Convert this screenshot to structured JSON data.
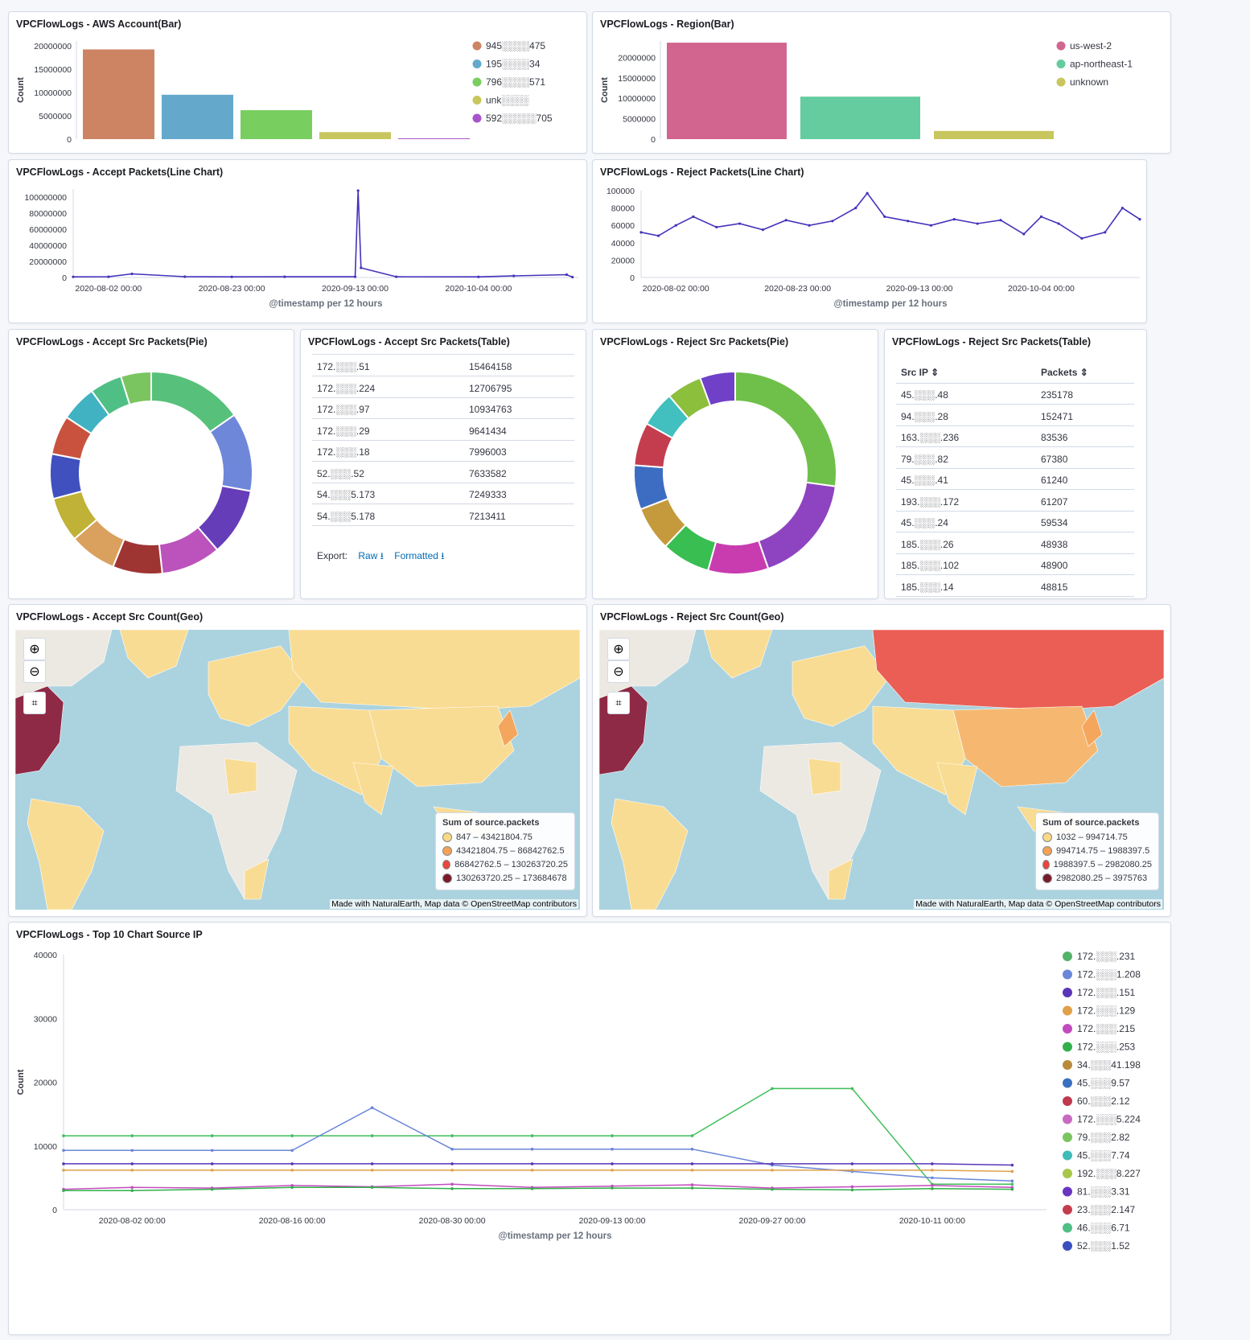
{
  "panels": {
    "aws_account_bar": {
      "title": "VPCFlowLogs - AWS Account(Bar)",
      "ylabel": "Count",
      "yticks": [
        "0",
        "5000000",
        "10000000",
        "15000000",
        "20000000"
      ],
      "legend": [
        "945░░░░475",
        "195░░░░34",
        "796░░░░571",
        "unk░░░░",
        "592░░░░░705"
      ]
    },
    "region_bar": {
      "title": "VPCFlowLogs - Region(Bar)",
      "ylabel": "Count",
      "yticks": [
        "0",
        "5000000",
        "10000000",
        "15000000",
        "20000000"
      ],
      "legend": [
        "us-west-2",
        "ap-northeast-1",
        "unknown"
      ]
    },
    "accept_line": {
      "title": "VPCFlowLogs - Accept Packets(Line Chart)",
      "yticks": [
        "0",
        "20000000",
        "40000000",
        "60000000",
        "80000000",
        "100000000"
      ],
      "xticks": [
        "2020-08-02 00:00",
        "2020-08-23 00:00",
        "2020-09-13 00:00",
        "2020-10-04 00:00"
      ],
      "xlabel": "@timestamp per 12 hours"
    },
    "reject_line": {
      "title": "VPCFlowLogs - Reject Packets(Line Chart)",
      "yticks": [
        "0",
        "20000",
        "40000",
        "60000",
        "80000",
        "100000"
      ],
      "xticks": [
        "2020-08-02 00:00",
        "2020-08-23 00:00",
        "2020-09-13 00:00",
        "2020-10-04 00:00"
      ],
      "xlabel": "@timestamp per 12 hours"
    },
    "accept_pie": {
      "title": "VPCFlowLogs - Accept Src Packets(Pie)"
    },
    "accept_table": {
      "title": "VPCFlowLogs - Accept Src Packets(Table)",
      "rows": [
        [
          "172.░░░.51",
          "15464158"
        ],
        [
          "172.░░░.224",
          "12706795"
        ],
        [
          "172.░░░.97",
          "10934763"
        ],
        [
          "172.░░░.29",
          "9641434"
        ],
        [
          "172.░░░.18",
          "7996003"
        ],
        [
          "52.░░░.52",
          "7633582"
        ],
        [
          "54.░░░5.173",
          "7249333"
        ],
        [
          "54.░░░5.178",
          "7213411"
        ]
      ],
      "export_label": "Export:",
      "raw_label": "Raw ⭳",
      "formatted_label": "Formatted ⭳"
    },
    "reject_pie": {
      "title": "VPCFlowLogs - Reject Src Packets(Pie)"
    },
    "reject_table": {
      "title": "VPCFlowLogs - Reject Src Packets(Table)",
      "col1": "Src IP ⇕",
      "col2": "Packets ⇕",
      "rows": [
        [
          "45.░░░.48",
          "235178"
        ],
        [
          "94.░░░.28",
          "152471"
        ],
        [
          "163.░░░.236",
          "83536"
        ],
        [
          "79.░░░.82",
          "67380"
        ],
        [
          "45.░░░.41",
          "61240"
        ],
        [
          "193.░░░.172",
          "61207"
        ],
        [
          "45.░░░.24",
          "59534"
        ],
        [
          "185.░░░.26",
          "48938"
        ],
        [
          "185.░░░.102",
          "48900"
        ],
        [
          "185.░░░.14",
          "48815"
        ]
      ]
    },
    "accept_geo": {
      "title": "VPCFlowLogs - Accept Src Count(Geo)",
      "legend_title": "Sum of source.packets",
      "legend": [
        "847 – 43421804.75",
        "43421804.75 – 86842762.5",
        "86842762.5 – 130263720.25",
        "130263720.25 – 173684678"
      ],
      "attribution": "Made with NaturalEarth, Map data © OpenStreetMap contributors"
    },
    "reject_geo": {
      "title": "VPCFlowLogs - Reject Src Count(Geo)",
      "legend_title": "Sum of source.packets",
      "legend": [
        "1032 – 994714.75",
        "994714.75 – 1988397.5",
        "1988397.5 – 2982080.25",
        "2982080.25 – 3975763"
      ],
      "attribution": "Made with NaturalEarth, Map data © OpenStreetMap contributors"
    },
    "top10": {
      "title": "VPCFlowLogs - Top 10 Chart Source IP",
      "ylabel": "Count",
      "yticks": [
        "0",
        "10000",
        "20000",
        "30000",
        "40000"
      ],
      "xticks": [
        "2020-08-02 00:00",
        "2020-08-16 00:00",
        "2020-08-30 00:00",
        "2020-09-13 00:00",
        "2020-09-27 00:00",
        "2020-10-11 00:00"
      ],
      "xlabel": "@timestamp per 12 hours",
      "legend": [
        "172.░░░.231",
        "172.░░░1.208",
        "172.░░░.151",
        "172.░░░.129",
        "172.░░░.215",
        "172.░░░.253",
        "34.░░░41.198",
        "45.░░░9.57",
        "60.░░░2.12",
        "172.░░░5.224",
        "79.░░░2.82",
        "45.░░░7.74",
        "192.░░░8.227",
        "81.░░░3.31",
        "23.░░░2.147",
        "46.░░░6.71",
        "52.░░░1.52"
      ]
    }
  },
  "colors": {
    "accent": "#006bb4",
    "series": [
      "#54b399",
      "#6092c0",
      "#6f3fc9",
      "#d6bf57",
      "#ca8eae",
      "#d36086",
      "#9170b8",
      "#b9a888",
      "#da8b45",
      "#aa6556",
      "#e7664c"
    ]
  },
  "chart_data": [
    {
      "type": "bar",
      "title": "VPCFlowLogs - AWS Account(Bar)",
      "ylabel": "Count",
      "ylim": [
        0,
        21000000
      ],
      "categories": [
        "945░░░░475",
        "195░░░░34",
        "796░░░░571",
        "unk░░░░",
        "592░░░░░705"
      ],
      "values": [
        19200000,
        9500000,
        6200000,
        1500000,
        100000
      ],
      "colors": [
        "#cd8463",
        "#64a9cc",
        "#78cf5f",
        "#c8c65e",
        "#a855c9"
      ],
      "legend_position": "right"
    },
    {
      "type": "bar",
      "title": "VPCFlowLogs - Region(Bar)",
      "ylabel": "Count",
      "ylim": [
        0,
        24000000
      ],
      "categories": [
        "us-west-2",
        "ap-northeast-1",
        "unknown"
      ],
      "values": [
        23600000,
        10400000,
        2000000
      ],
      "colors": [
        "#d26590",
        "#64cc9e",
        "#c8c65e"
      ],
      "legend_position": "right"
    },
    {
      "type": "line",
      "title": "VPCFlowLogs - Accept Packets(Line Chart)",
      "xlabel": "@timestamp per 12 hours",
      "ylim": [
        0,
        110000000
      ],
      "x": [
        "2020-07-27",
        "2020-08-02",
        "2020-08-06",
        "2020-08-15",
        "2020-08-23",
        "2020-09-01",
        "2020-09-13",
        "2020-09-13 12:00",
        "2020-09-14",
        "2020-09-20",
        "2020-10-04",
        "2020-10-10",
        "2020-10-19",
        "2020-10-20"
      ],
      "values": [
        800000,
        900000,
        4500000,
        1000000,
        800000,
        900000,
        900000,
        108000000,
        12000000,
        900000,
        800000,
        2000000,
        3500000,
        500000
      ],
      "color": "#4433bb"
    },
    {
      "type": "line",
      "title": "VPCFlowLogs - Reject Packets(Line Chart)",
      "xlabel": "@timestamp per 12 hours",
      "ylim": [
        0,
        100000
      ],
      "x": [
        "2020-07-27",
        "2020-07-30",
        "2020-08-02",
        "2020-08-05",
        "2020-08-09",
        "2020-08-13",
        "2020-08-17",
        "2020-08-21",
        "2020-08-25",
        "2020-08-29",
        "2020-09-02",
        "2020-09-04",
        "2020-09-07",
        "2020-09-11",
        "2020-09-15",
        "2020-09-19",
        "2020-09-23",
        "2020-09-27",
        "2020-10-01",
        "2020-10-04",
        "2020-10-07",
        "2020-10-11",
        "2020-10-15",
        "2020-10-18",
        "2020-10-21"
      ],
      "values": [
        52000,
        48000,
        60000,
        70000,
        58000,
        62000,
        55000,
        66000,
        60000,
        65000,
        80000,
        97000,
        70000,
        65000,
        60000,
        67000,
        62000,
        66000,
        50000,
        70000,
        62000,
        45000,
        52000,
        80000,
        67000
      ],
      "color": "#4433bb"
    },
    {
      "type": "pie",
      "title": "VPCFlowLogs - Accept Src Packets(Pie)",
      "values": [
        15464158,
        12706795,
        10934763,
        9641434,
        7996003,
        7633582,
        7249333,
        7213411,
        6300000,
        5800000,
        5200000,
        4900000
      ],
      "colors": [
        "#57c17b",
        "#6f87d8",
        "#663db8",
        "#bc52bc",
        "#9e3533",
        "#daa05d",
        "#bfb237",
        "#4050bf",
        "#c9523e",
        "#41b2c2",
        "#4fbf85",
        "#7ac55f"
      ],
      "donut": true
    },
    {
      "type": "pie",
      "title": "VPCFlowLogs - Reject Src Packets(Pie)",
      "values": [
        235178,
        152471,
        83536,
        67380,
        61240,
        61207,
        59534,
        48938,
        48900,
        48815
      ],
      "colors": [
        "#6fc04a",
        "#8e44c0",
        "#c83cb0",
        "#39be52",
        "#c49a3c",
        "#3d6dc2",
        "#c43d4f",
        "#42bfbf",
        "#8cbf3c",
        "#7040c8"
      ],
      "donut": true
    },
    {
      "type": "line",
      "title": "VPCFlowLogs - Top 10 Chart Source IP",
      "xlabel": "@timestamp per 12 hours",
      "ylabel": "Count",
      "ylim": [
        0,
        40000
      ],
      "x": [
        "2020-07-27",
        "2020-08-02",
        "2020-08-09",
        "2020-08-16",
        "2020-08-23",
        "2020-08-30",
        "2020-09-06",
        "2020-09-13",
        "2020-09-20",
        "2020-09-27",
        "2020-10-04",
        "2020-10-11",
        "2020-10-18"
      ],
      "series": [
        {
          "name": "172.░░░.231",
          "values": [
            11600,
            11600,
            11600,
            11600,
            11600,
            11600,
            11600,
            11600,
            11600,
            19000,
            19000,
            4000,
            4000
          ]
        },
        {
          "name": "172.░░░1.208",
          "values": [
            9300,
            9300,
            9300,
            9300,
            16000,
            9500,
            9500,
            9500,
            9500,
            7000,
            6000,
            5000,
            4500
          ]
        },
        {
          "name": "172.░░░.151",
          "values": [
            7200,
            7200,
            7200,
            7200,
            7200,
            7200,
            7200,
            7200,
            7200,
            7200,
            7200,
            7200,
            7000
          ]
        },
        {
          "name": "172.░░░.129",
          "values": [
            6200,
            6200,
            6200,
            6200,
            6200,
            6200,
            6200,
            6200,
            6200,
            6200,
            6200,
            6200,
            6000
          ]
        },
        {
          "name": "172.░░░.215",
          "values": [
            3200,
            3500,
            3400,
            3800,
            3600,
            4000,
            3500,
            3700,
            3900,
            3400,
            3600,
            3800,
            3500
          ]
        },
        {
          "name": "172.░░░.253",
          "values": [
            3000,
            3000,
            3200,
            3500,
            3500,
            3300,
            3300,
            3400,
            3400,
            3200,
            3100,
            3300,
            3200
          ]
        }
      ],
      "legend_position": "right"
    }
  ]
}
